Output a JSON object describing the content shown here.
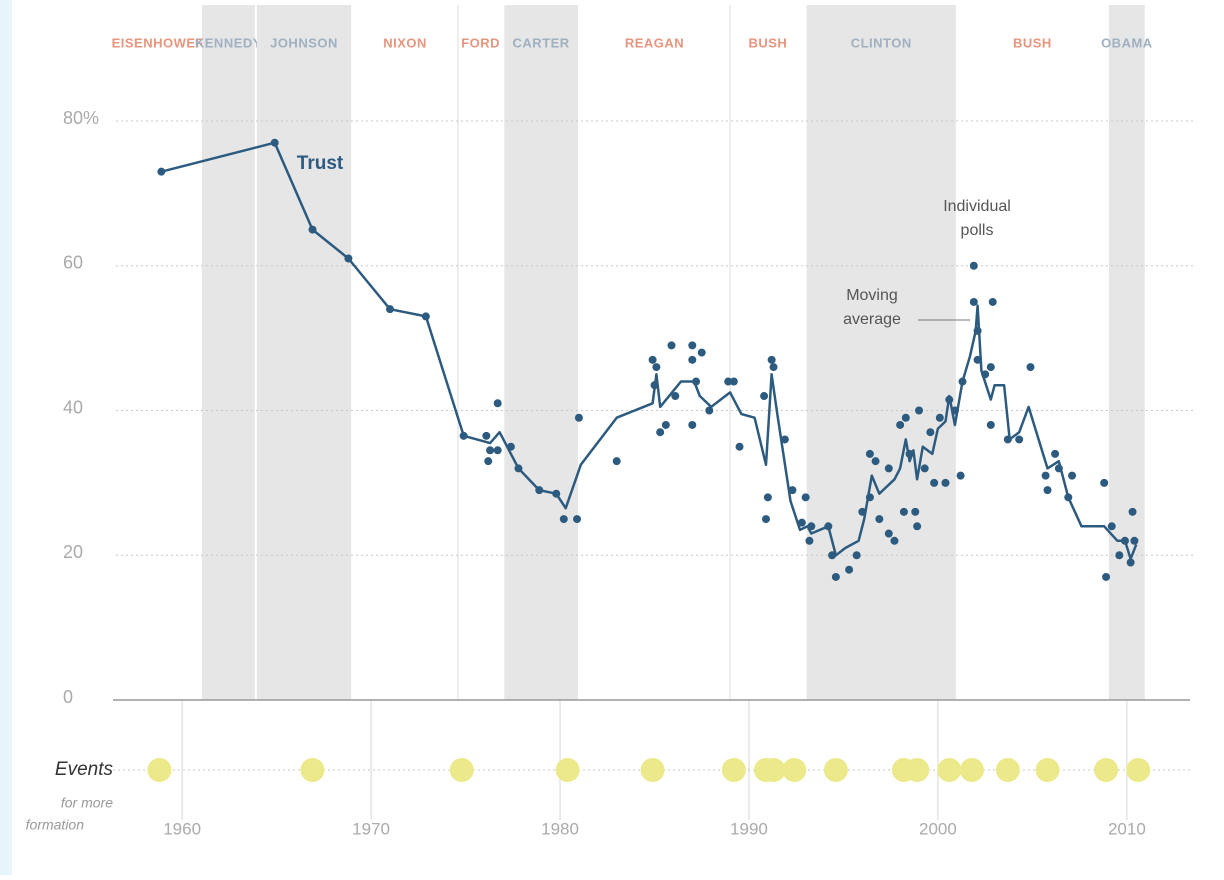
{
  "chart_data": {
    "type": "line",
    "xlim": [
      1956.5,
      2013.5
    ],
    "xticks": [
      1960,
      1970,
      1980,
      1990,
      2000,
      2010
    ],
    "ylim": [
      0,
      80
    ],
    "yticks": [
      0,
      20,
      40,
      60,
      {
        "value": 80,
        "label": "80%"
      }
    ],
    "grid": true,
    "presidents": [
      {
        "name": "EISENHOWER",
        "start": 1953,
        "end": 1961,
        "shaded": false,
        "color": "#e8957e"
      },
      {
        "name": "KENNEDY",
        "start": 1961,
        "end": 1963.9,
        "shaded": true,
        "color": "#9fb0c0"
      },
      {
        "name": "JOHNSON",
        "start": 1963.9,
        "end": 1969,
        "shaded": true,
        "color": "#9fb0c0"
      },
      {
        "name": "NIXON",
        "start": 1969,
        "end": 1974.6,
        "shaded": false,
        "color": "#e8957e"
      },
      {
        "name": "FORD",
        "start": 1974.6,
        "end": 1977,
        "shaded": false,
        "color": "#e8957e"
      },
      {
        "name": "CARTER",
        "start": 1977,
        "end": 1981,
        "shaded": true,
        "color": "#9fb0c0"
      },
      {
        "name": "REAGAN",
        "start": 1981,
        "end": 1989,
        "shaded": false,
        "color": "#e8957e"
      },
      {
        "name": "BUSH",
        "start": 1989,
        "end": 1993,
        "shaded": false,
        "color": "#e8957e"
      },
      {
        "name": "CLINTON",
        "start": 1993,
        "end": 2001,
        "shaded": true,
        "color": "#9fb0c0"
      },
      {
        "name": "BUSH",
        "start": 2001,
        "end": 2009,
        "shaded": false,
        "color": "#e8957e"
      },
      {
        "name": "OBAMA",
        "start": 2009,
        "end": 2011,
        "shaded": true,
        "color": "#9fb0c0"
      }
    ],
    "series": [
      {
        "kind": "line",
        "color": "#2d5b80",
        "x": [
          1958.9,
          1964.9,
          1966.9,
          1968.8,
          1971,
          1972.9,
          1974.9,
          1976.3,
          1976.8,
          1977.8,
          1978.9,
          1979.8,
          1980.3,
          1981.1,
          1983,
          1984.9,
          1985.1,
          1985.3,
          1986.4,
          1987.1,
          1987.4,
          1988,
          1989,
          1989.6,
          1990.3,
          1990.9,
          1991.2,
          1991.5,
          1992.2,
          1992.7,
          1993.1,
          1993.3,
          1994.2,
          1994.6,
          1995.1,
          1995.8,
          1996.1,
          1996.5,
          1996.9,
          1997.7,
          1998,
          1998.3,
          1998.5,
          1998.7,
          1998.9,
          1999.2,
          1999.7,
          2000,
          2000.4,
          2000.6,
          2000.9,
          2001.3,
          2001.7,
          2002,
          2002.1,
          2002.3,
          2002.8,
          2003,
          2003.5,
          2003.8,
          2004.3,
          2004.8,
          2005.8,
          2006.4,
          2006.9,
          2007.6,
          2008.8,
          2009.5,
          2009.9,
          2010.2,
          2010.5
        ],
        "values": [
          73,
          77,
          65,
          61,
          54,
          53,
          36.5,
          35.5,
          37,
          32,
          29,
          28.5,
          26.5,
          32.5,
          39,
          41,
          45,
          40.5,
          44,
          44,
          42,
          40.5,
          42.5,
          39.5,
          39,
          32.5,
          45,
          39.5,
          27.5,
          23.5,
          24,
          23,
          24,
          20,
          21,
          22,
          25,
          31,
          28.5,
          30.5,
          32,
          36,
          33,
          34.5,
          30.5,
          35,
          34,
          37.5,
          38.5,
          42,
          38,
          44,
          47.5,
          51,
          54.5,
          45.5,
          41.5,
          43.5,
          43.5,
          36,
          37,
          40.5,
          32,
          33,
          28,
          24,
          24,
          22,
          22,
          19.5,
          21.5
        ]
      },
      {
        "kind": "scatter",
        "color": "#2d5b80",
        "x": [
          1958.9,
          1964.9,
          1966.9,
          1968.8,
          1971,
          1972.9,
          1974.9,
          1976.1,
          1976.2,
          1976.3,
          1976.7,
          1976.7,
          1977.4,
          1977.8,
          1978.9,
          1979.8,
          1980.2,
          1980.9,
          1981,
          1983,
          1984.9,
          1985.1,
          1985,
          1985.3,
          1985.6,
          1985.9,
          1986.1,
          1987,
          1987,
          1987,
          1987.5,
          1987.2,
          1987.9,
          1988.9,
          1989.2,
          1989.5,
          1990.8,
          1990.9,
          1991,
          1991.2,
          1991.3,
          1991.9,
          1992.3,
          1992.8,
          1993,
          1993.2,
          1993.3,
          1994.2,
          1994.4,
          1994.6,
          1995.3,
          1995.7,
          1996,
          1996.4,
          1996.7,
          1996.4,
          1996.9,
          1997.4,
          1997.7,
          1997.4,
          1998,
          1998.3,
          1998.2,
          1998.5,
          1998.8,
          1998.9,
          1999,
          1999.3,
          1999.6,
          1999.8,
          2000.1,
          2000.4,
          2000.6,
          2000.9,
          2001.2,
          2001.3,
          2001.9,
          2001.9,
          2002.1,
          2002.1,
          2002.5,
          2002.8,
          2002.9,
          2002.8,
          2003.7,
          2004.3,
          2004.9,
          2005.7,
          2005.8,
          2006.2,
          2006.4,
          2006.9,
          2007.1,
          2008.8,
          2008.9,
          2009.2,
          2009.6,
          2009.9,
          2010.2,
          2010.3,
          2010.4
        ],
        "values": [
          73,
          77,
          65,
          61,
          54,
          53,
          36.5,
          36.5,
          33,
          34.5,
          41,
          34.5,
          35,
          32,
          29,
          28.5,
          25,
          25,
          39,
          33,
          47,
          46,
          43.5,
          37,
          38,
          49,
          42,
          49,
          38,
          47,
          48,
          44,
          40,
          44,
          44,
          35,
          42,
          25,
          28,
          47,
          46,
          36,
          29,
          24.5,
          28,
          22,
          24,
          24,
          20,
          17,
          18,
          20,
          26,
          34,
          33,
          28,
          25,
          32,
          22,
          23,
          38,
          39,
          26,
          34,
          26,
          24,
          40,
          32,
          37,
          30,
          39,
          30,
          41.5,
          40,
          31,
          44,
          60,
          55,
          51,
          47,
          45,
          38,
          55,
          46,
          36,
          36,
          46,
          31,
          29,
          34,
          32,
          28,
          31,
          30,
          17,
          24,
          20,
          22,
          19,
          26,
          22
        ]
      }
    ],
    "annotations": {
      "trust": "Trust",
      "polls": [
        "Individual",
        "polls"
      ],
      "average": [
        "Moving",
        "average"
      ]
    },
    "events": {
      "label": "Events",
      "note": [
        "for more",
        "formation"
      ],
      "color": "#ece98a",
      "x": [
        1958.8,
        1966.9,
        1974.8,
        1980.4,
        1984.9,
        1989.2,
        1990.9,
        1991.3,
        1992.4,
        1994.6,
        1998.2,
        1998.9,
        2000.6,
        2001.8,
        2003.7,
        2005.8,
        2008.9,
        2010.6
      ]
    }
  }
}
